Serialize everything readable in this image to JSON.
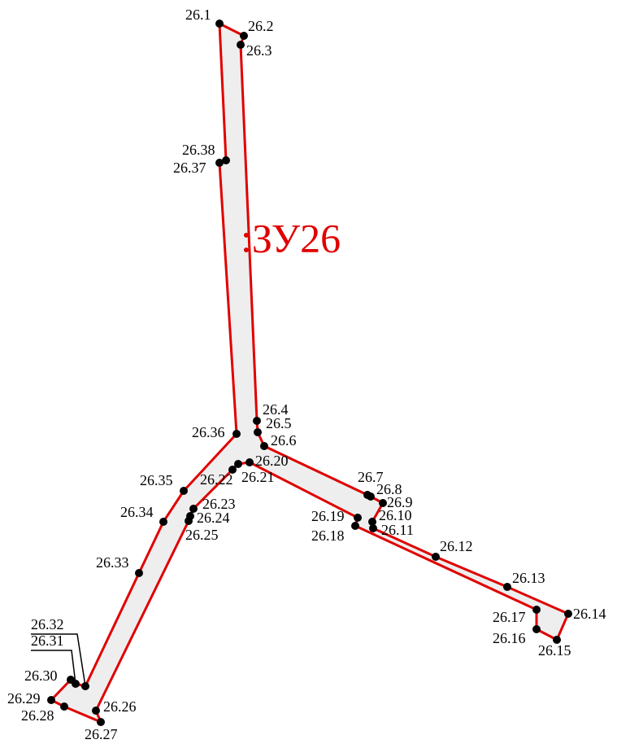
{
  "parcel": {
    "label": ":ЗУ26"
  },
  "points": [
    "26.1",
    "26.2",
    "26.3",
    "26.4",
    "26.5",
    "26.6",
    "26.7",
    "26.8",
    "26.9",
    "26.10",
    "26.11",
    "26.12",
    "26.13",
    "26.14",
    "26.15",
    "26.16",
    "26.17",
    "26.18",
    "26.19",
    "26.20",
    "26.21",
    "26.22",
    "26.23",
    "26.24",
    "26.25",
    "26.26",
    "26.27",
    "26.28",
    "26.29",
    "26.30",
    "26.31",
    "26.32",
    "26.33",
    "26.34",
    "26.35",
    "26.36",
    "26.37",
    "26.38"
  ]
}
